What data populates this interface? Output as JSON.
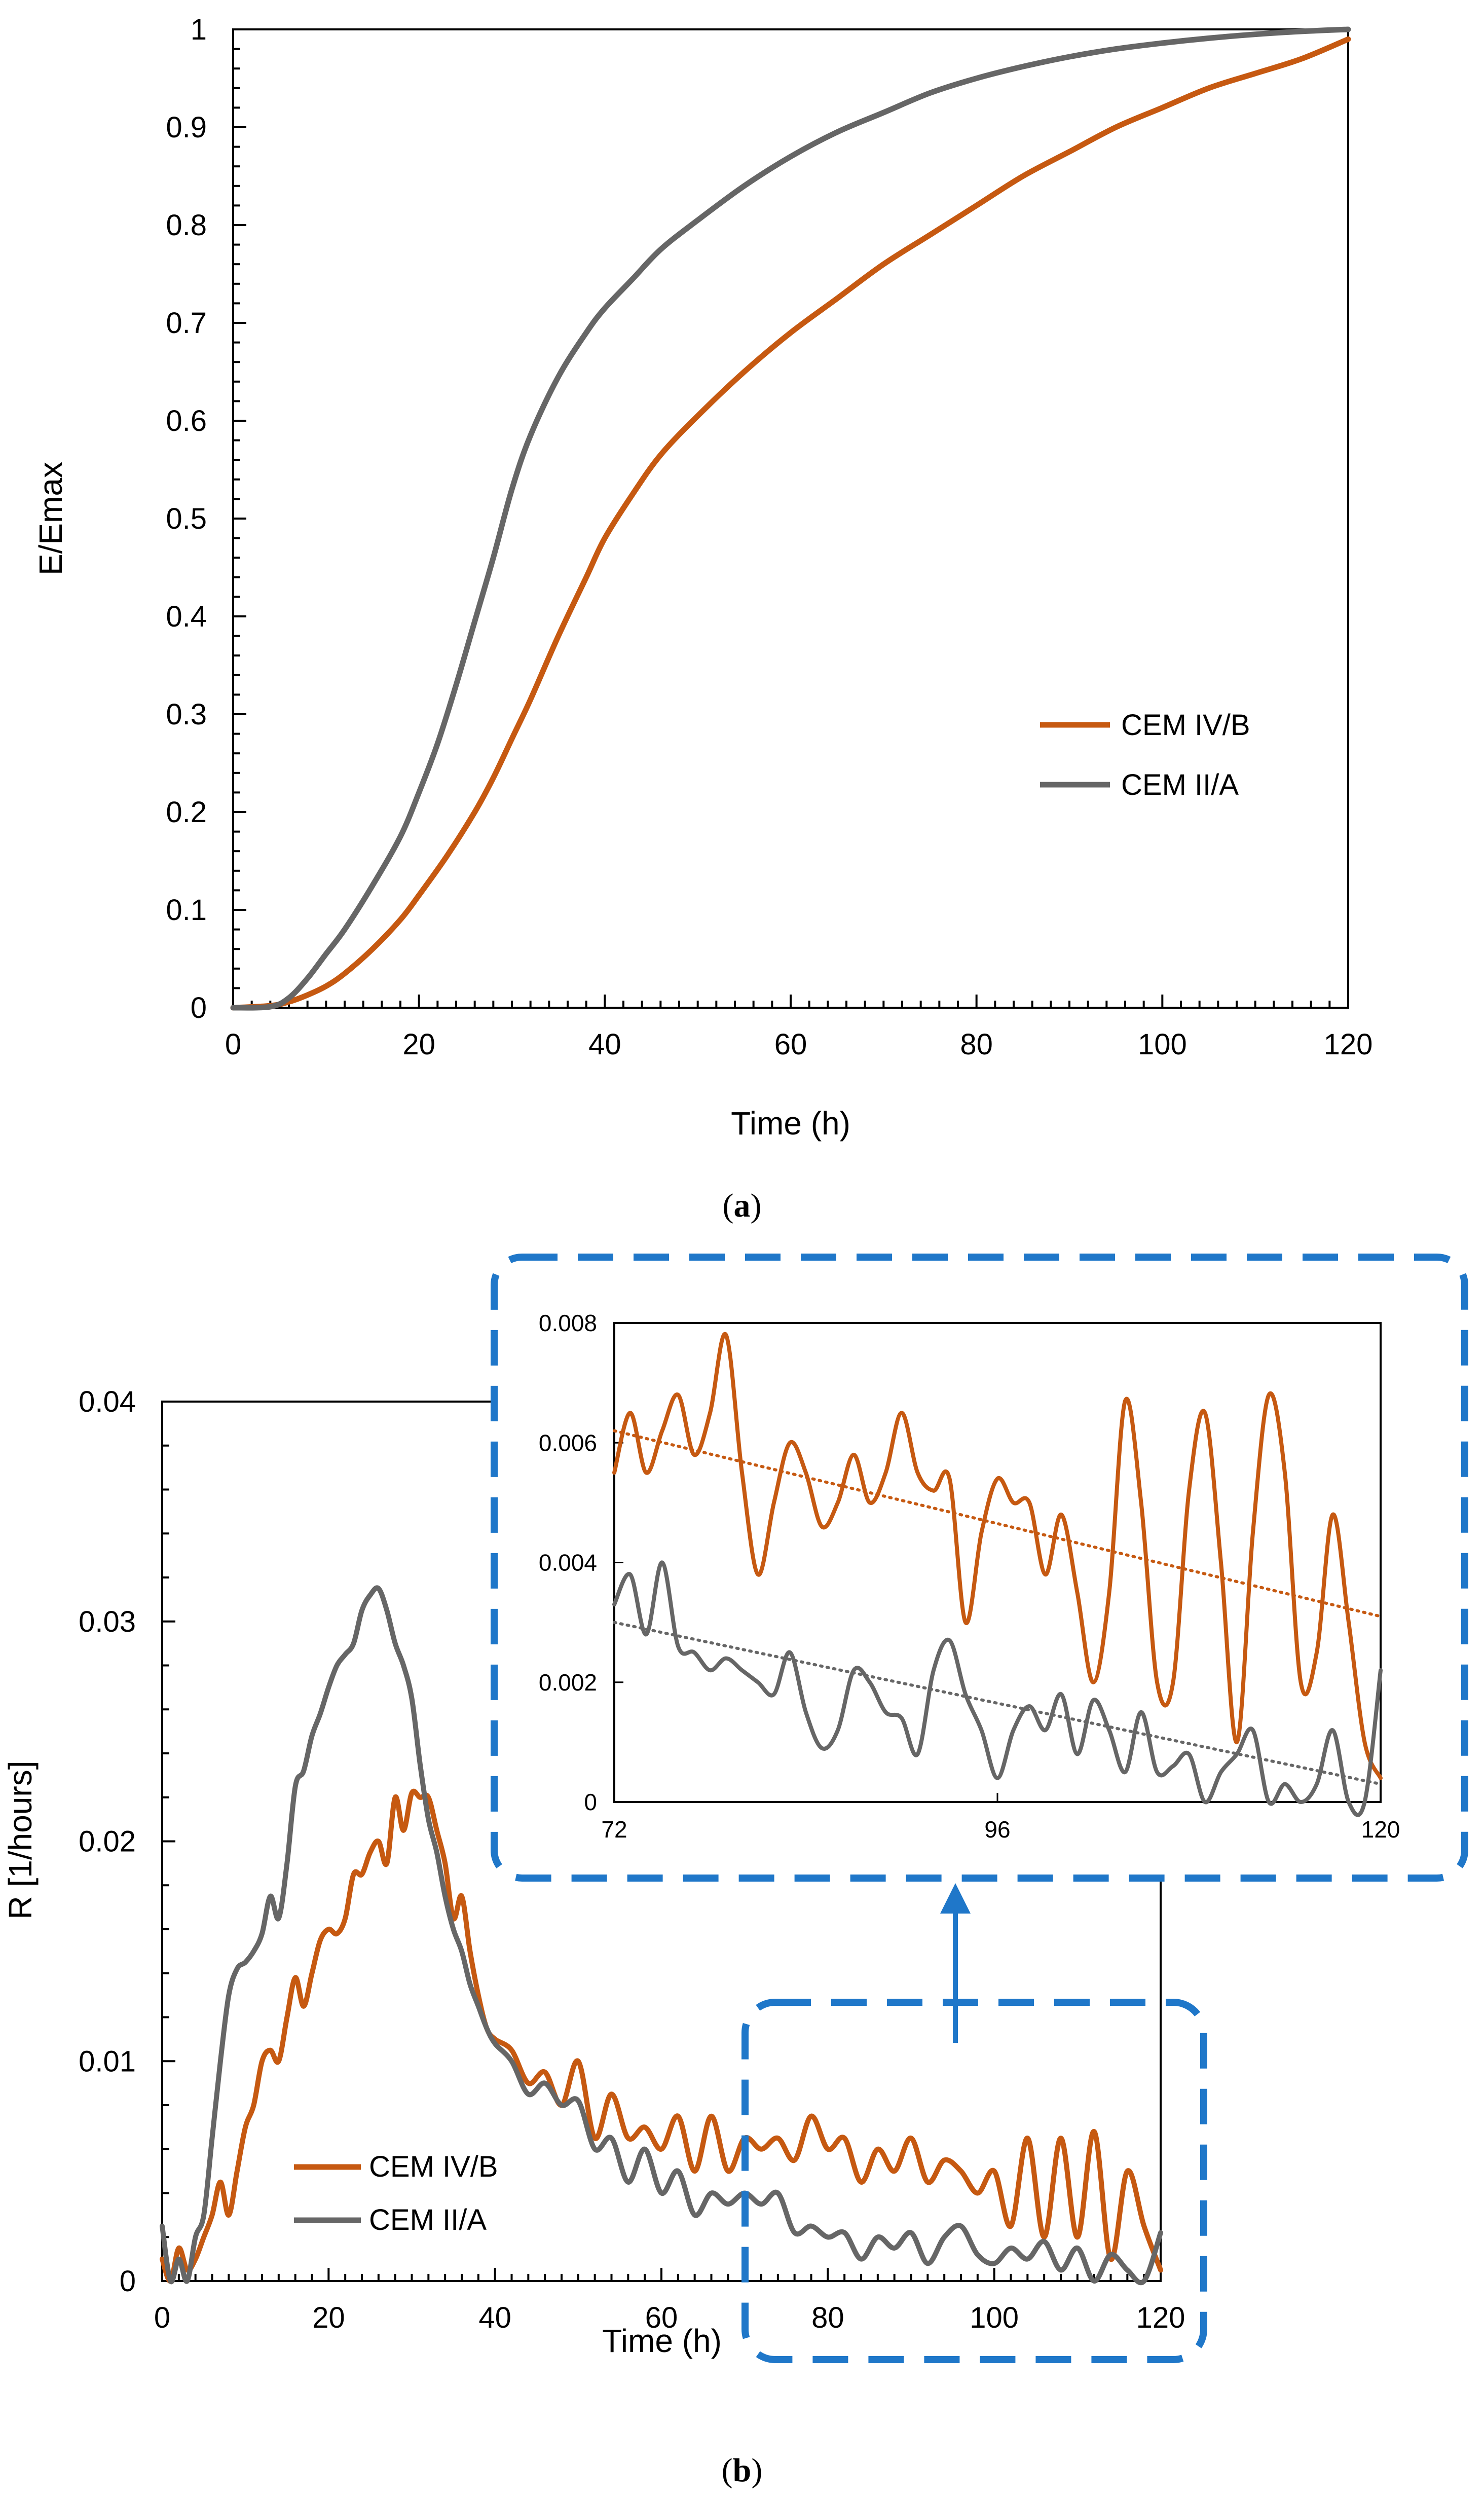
{
  "colors": {
    "cem_iv_b": "#c65911",
    "cem_ii_a": "#666666",
    "callout": "#1f77c9"
  },
  "captions": {
    "a_open": "(",
    "a_letter": "a",
    "a_close": ")",
    "b_open": "(",
    "b_letter": "b",
    "b_close": ")"
  },
  "chart_data": [
    {
      "id": "a",
      "type": "line",
      "xlabel": "Time (h)",
      "ylabel": "E/Emax",
      "xlim": [
        0,
        120
      ],
      "ylim": [
        0,
        1
      ],
      "xticks": [
        0,
        20,
        40,
        60,
        80,
        100,
        120
      ],
      "yticks": [
        0,
        0.1,
        0.2,
        0.3,
        0.4,
        0.5,
        0.6,
        0.7,
        0.8,
        0.9,
        1
      ],
      "ytick_labels": [
        "0",
        "0.1",
        "0.2",
        "0.3",
        "0.4",
        "0.5",
        "0.6",
        "0.7",
        "0.8",
        "0.9",
        "1"
      ],
      "legend_position": "center-right",
      "series": [
        {
          "name": "CEM IV/B",
          "color_key": "cem_iv_b",
          "x": [
            0,
            4,
            6,
            8,
            10,
            12,
            15,
            18,
            20,
            23,
            26,
            28,
            30,
            32,
            35,
            38,
            40,
            43,
            46,
            50,
            55,
            60,
            65,
            70,
            75,
            80,
            85,
            90,
            95,
            100,
            105,
            110,
            115,
            120
          ],
          "y": [
            0,
            0.002,
            0.006,
            0.013,
            0.022,
            0.035,
            0.06,
            0.09,
            0.115,
            0.155,
            0.2,
            0.235,
            0.275,
            0.315,
            0.38,
            0.44,
            0.48,
            0.525,
            0.565,
            0.605,
            0.65,
            0.69,
            0.725,
            0.76,
            0.79,
            0.82,
            0.85,
            0.875,
            0.9,
            0.92,
            0.94,
            0.955,
            0.97,
            0.99
          ]
        },
        {
          "name": "CEM II/A",
          "color_key": "cem_ii_a",
          "x": [
            0,
            4,
            6,
            8,
            10,
            12,
            15,
            18,
            20,
            22,
            24,
            26,
            28,
            30,
            32,
            35,
            38,
            40,
            43,
            46,
            50,
            55,
            60,
            65,
            70,
            75,
            80,
            85,
            90,
            95,
            100,
            105,
            110,
            115,
            120
          ],
          "y": [
            0,
            0.001,
            0.01,
            0.03,
            0.055,
            0.08,
            0.125,
            0.175,
            0.22,
            0.27,
            0.33,
            0.395,
            0.46,
            0.53,
            0.585,
            0.645,
            0.69,
            0.715,
            0.745,
            0.775,
            0.805,
            0.84,
            0.87,
            0.895,
            0.915,
            0.935,
            0.95,
            0.962,
            0.972,
            0.98,
            0.986,
            0.991,
            0.995,
            0.998,
            1.0
          ]
        }
      ]
    },
    {
      "id": "b",
      "type": "line",
      "xlabel": "Time (h)",
      "ylabel": "R [1/hours]",
      "xlim": [
        0,
        120
      ],
      "ylim": [
        0,
        0.04
      ],
      "xticks": [
        0,
        20,
        40,
        60,
        80,
        100,
        120
      ],
      "yticks": [
        0,
        0.01,
        0.02,
        0.03,
        0.04
      ],
      "ytick_labels": [
        "0",
        "0.01",
        "0.02",
        "0.03",
        "0.04"
      ],
      "legend_position": "bottom-left",
      "series": [
        {
          "name": "CEM IV/B",
          "color_key": "cem_iv_b",
          "x": [
            0,
            1,
            2,
            3,
            4,
            5,
            6,
            7,
            8,
            9,
            10,
            11,
            12,
            13,
            14,
            15,
            16,
            17,
            18,
            19,
            20,
            21,
            22,
            23,
            24,
            25,
            26,
            27,
            28,
            29,
            30,
            31,
            32,
            33,
            34,
            35,
            36,
            37,
            38,
            39,
            40,
            42,
            44,
            46,
            48,
            50,
            52,
            54,
            56,
            58,
            60,
            62,
            64,
            66,
            68,
            70,
            72,
            74,
            76,
            78,
            80,
            82,
            84,
            86,
            88,
            90,
            92,
            94,
            96,
            98,
            100,
            102,
            104,
            106,
            108,
            110,
            112,
            114,
            116,
            118,
            120
          ],
          "y": [
            0.001,
            0.0,
            0.0015,
            0.0005,
            0.001,
            0.002,
            0.003,
            0.0045,
            0.003,
            0.005,
            0.007,
            0.008,
            0.01,
            0.0105,
            0.01,
            0.012,
            0.0138,
            0.0125,
            0.014,
            0.0155,
            0.016,
            0.0158,
            0.0165,
            0.0185,
            0.0185,
            0.0195,
            0.02,
            0.019,
            0.022,
            0.0205,
            0.0222,
            0.022,
            0.022,
            0.0205,
            0.019,
            0.0165,
            0.0175,
            0.015,
            0.013,
            0.0115,
            0.011,
            0.0105,
            0.009,
            0.0095,
            0.008,
            0.01,
            0.0065,
            0.0085,
            0.0065,
            0.007,
            0.006,
            0.0075,
            0.005,
            0.0075,
            0.005,
            0.0065,
            0.006,
            0.0065,
            0.0055,
            0.0075,
            0.006,
            0.0065,
            0.0045,
            0.006,
            0.005,
            0.0065,
            0.0045,
            0.0055,
            0.005,
            0.004,
            0.005,
            0.0025,
            0.0065,
            0.002,
            0.0065,
            0.002,
            0.0068,
            0.001,
            0.005,
            0.0025,
            0.0005
          ]
        },
        {
          "name": "CEM II/A",
          "color_key": "cem_ii_a",
          "x": [
            0,
            1,
            2,
            3,
            4,
            5,
            6,
            7,
            8,
            9,
            10,
            11,
            12,
            13,
            14,
            15,
            16,
            17,
            18,
            19,
            20,
            21,
            22,
            23,
            24,
            25,
            26,
            27,
            28,
            29,
            30,
            31,
            32,
            33,
            34,
            35,
            36,
            37,
            38,
            39,
            40,
            42,
            44,
            46,
            48,
            50,
            52,
            54,
            56,
            58,
            60,
            62,
            64,
            66,
            68,
            70,
            72,
            74,
            76,
            78,
            80,
            82,
            84,
            86,
            88,
            90,
            92,
            94,
            96,
            98,
            100,
            102,
            104,
            106,
            108,
            110,
            112,
            114,
            116,
            118,
            120
          ],
          "y": [
            0.0025,
            0.0,
            0.001,
            0.0,
            0.002,
            0.003,
            0.0065,
            0.01,
            0.013,
            0.0142,
            0.0145,
            0.015,
            0.0158,
            0.0175,
            0.0165,
            0.019,
            0.0225,
            0.0232,
            0.0248,
            0.0258,
            0.027,
            0.028,
            0.0285,
            0.029,
            0.0305,
            0.0312,
            0.0315,
            0.0305,
            0.029,
            0.028,
            0.0265,
            0.0235,
            0.021,
            0.0195,
            0.0175,
            0.016,
            0.015,
            0.0135,
            0.0125,
            0.0115,
            0.0108,
            0.01,
            0.0085,
            0.009,
            0.008,
            0.0082,
            0.006,
            0.0065,
            0.0045,
            0.006,
            0.004,
            0.005,
            0.003,
            0.004,
            0.0035,
            0.004,
            0.0035,
            0.004,
            0.0022,
            0.0025,
            0.002,
            0.0022,
            0.001,
            0.002,
            0.0015,
            0.0022,
            0.0008,
            0.002,
            0.0025,
            0.0012,
            0.0008,
            0.0015,
            0.001,
            0.0018,
            0.0005,
            0.0015,
            0.0,
            0.0012,
            0.0005,
            0.0,
            0.0022
          ]
        }
      ]
    },
    {
      "id": "b-inset",
      "type": "line",
      "xlim": [
        72,
        120
      ],
      "ylim": [
        0,
        0.008
      ],
      "xticks": [
        72,
        96,
        120
      ],
      "yticks": [
        0,
        0.002,
        0.004,
        0.006,
        0.008
      ],
      "ytick_labels": [
        "0",
        "0.002",
        "0.004",
        "0.006",
        "0.008"
      ],
      "series": [
        {
          "name": "CEM IV/B",
          "color_key": "cem_iv_b",
          "x": [
            72,
            73,
            74,
            75,
            76,
            77,
            78,
            79,
            80,
            81,
            82,
            83,
            84,
            85,
            86,
            87,
            88,
            89,
            90,
            91,
            92,
            93,
            94,
            95,
            96,
            97,
            98,
            99,
            100,
            101,
            102,
            103,
            104,
            105,
            106,
            107,
            108,
            109,
            110,
            111,
            112,
            113,
            114,
            115,
            116,
            117,
            118,
            119,
            120
          ],
          "y": [
            0.0055,
            0.0065,
            0.0055,
            0.0062,
            0.0068,
            0.0058,
            0.0065,
            0.0078,
            0.0055,
            0.0038,
            0.005,
            0.006,
            0.0055,
            0.0046,
            0.005,
            0.0058,
            0.005,
            0.0055,
            0.0065,
            0.0055,
            0.0052,
            0.0054,
            0.003,
            0.0045,
            0.0054,
            0.005,
            0.005,
            0.0038,
            0.0048,
            0.0035,
            0.002,
            0.0035,
            0.0067,
            0.005,
            0.002,
            0.002,
            0.0052,
            0.0065,
            0.004,
            0.001,
            0.0045,
            0.0068,
            0.0055,
            0.002,
            0.0025,
            0.0048,
            0.003,
            0.001,
            0.0004
          ]
        },
        {
          "name": "CEM II/A",
          "color_key": "cem_ii_a",
          "x": [
            72,
            73,
            74,
            75,
            76,
            77,
            78,
            79,
            80,
            81,
            82,
            83,
            84,
            85,
            86,
            87,
            88,
            89,
            90,
            91,
            92,
            93,
            94,
            95,
            96,
            97,
            98,
            99,
            100,
            101,
            102,
            103,
            104,
            105,
            106,
            107,
            108,
            109,
            110,
            111,
            112,
            113,
            114,
            115,
            116,
            117,
            118,
            119,
            120
          ],
          "y": [
            0.0033,
            0.0038,
            0.0028,
            0.004,
            0.0026,
            0.0025,
            0.0022,
            0.0024,
            0.0022,
            0.002,
            0.0018,
            0.0025,
            0.0015,
            0.0009,
            0.0012,
            0.0022,
            0.002,
            0.0015,
            0.0014,
            0.0008,
            0.0022,
            0.0027,
            0.0018,
            0.0012,
            0.0004,
            0.0012,
            0.0016,
            0.0012,
            0.0018,
            0.0008,
            0.0017,
            0.0012,
            0.0005,
            0.0015,
            0.0005,
            0.0006,
            0.0008,
            0.0,
            0.0005,
            0.0008,
            0.0012,
            0.0,
            0.0003,
            0.0,
            0.0003,
            0.0012,
            0.0,
            0.0,
            0.0022
          ]
        }
      ],
      "trendlines": [
        {
          "name": "CEM IV/B trend",
          "color_key": "cem_iv_b",
          "x": [
            72,
            120
          ],
          "y": [
            0.0062,
            0.0031
          ]
        },
        {
          "name": "CEM II/A trend",
          "color_key": "cem_ii_a",
          "x": [
            72,
            120
          ],
          "y": [
            0.003,
            0.0003
          ]
        }
      ]
    }
  ]
}
